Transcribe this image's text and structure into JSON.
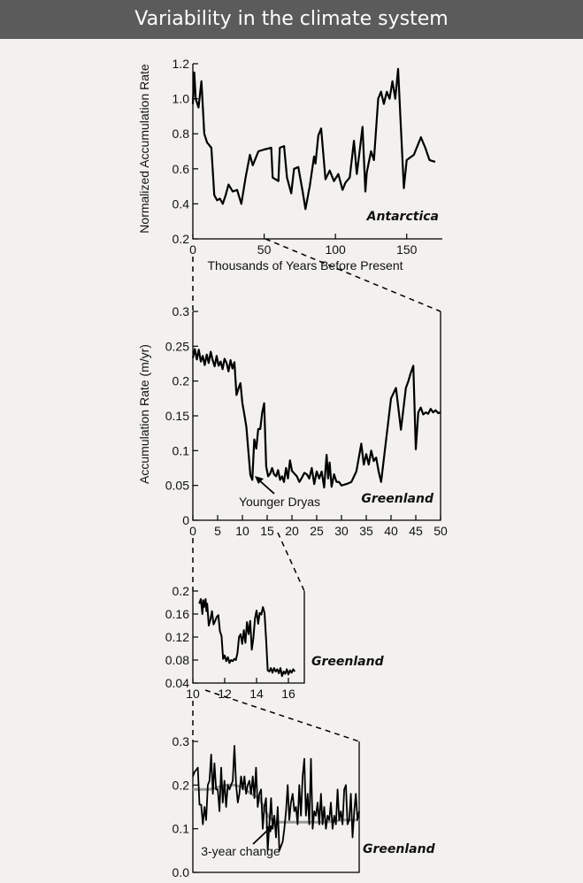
{
  "title": "Variability in the climate system",
  "chart_data": [
    {
      "type": "line",
      "region_label": "Antarctica",
      "xlabel": "Thousands of Years Before Present",
      "ylabel": "Normalized Accumulation Rate",
      "xlim": [
        0,
        175
      ],
      "ylim": [
        0.2,
        1.2
      ],
      "xticks": [
        "0",
        "50",
        "100",
        "150"
      ],
      "yticks": [
        "0.2",
        "0.4",
        "0.6",
        "0.8",
        "1.0",
        "1.2"
      ],
      "x": [
        0,
        1,
        2,
        4,
        6,
        8,
        10,
        13,
        15,
        17,
        19,
        21,
        23,
        25,
        28,
        31,
        34,
        37,
        40,
        42,
        44,
        46,
        50,
        55,
        56,
        60,
        61,
        64,
        66,
        69,
        71,
        74,
        77,
        79,
        82,
        85,
        86,
        88,
        90,
        93,
        96,
        99,
        102,
        105,
        107,
        110,
        113,
        115,
        117,
        119,
        121,
        122,
        125,
        127,
        130,
        132,
        134,
        136,
        138,
        140,
        142,
        144,
        146,
        148,
        150,
        155,
        160,
        163,
        166,
        170
      ],
      "y": [
        0.97,
        1.15,
        1.0,
        0.95,
        1.1,
        0.8,
        0.75,
        0.72,
        0.45,
        0.42,
        0.43,
        0.4,
        0.45,
        0.51,
        0.47,
        0.48,
        0.4,
        0.55,
        0.68,
        0.62,
        0.66,
        0.7,
        0.71,
        0.72,
        0.55,
        0.53,
        0.72,
        0.73,
        0.55,
        0.46,
        0.6,
        0.61,
        0.47,
        0.37,
        0.5,
        0.67,
        0.63,
        0.79,
        0.83,
        0.54,
        0.59,
        0.53,
        0.57,
        0.48,
        0.52,
        0.55,
        0.76,
        0.57,
        0.7,
        0.84,
        0.47,
        0.58,
        0.7,
        0.65,
        1.0,
        1.04,
        0.97,
        1.04,
        1.0,
        1.1,
        1.0,
        1.17,
        0.82,
        0.49,
        0.65,
        0.68,
        0.78,
        0.72,
        0.65,
        0.64
      ]
    },
    {
      "type": "line",
      "region_label": "Greenland",
      "xlabel": "",
      "ylabel": "Accumulation Rate (m/yr)",
      "xlim": [
        0,
        50
      ],
      "ylim": [
        0,
        0.3
      ],
      "xticks": [
        "0",
        "5",
        "10",
        "15",
        "20",
        "25",
        "30",
        "35",
        "40",
        "45",
        "50"
      ],
      "yticks": [
        "0",
        "0.05",
        "0.1",
        "0.15",
        "0.2",
        "0.25",
        "0.3"
      ],
      "annotation": "Younger Dryas",
      "x": [
        0,
        0.4,
        0.8,
        1.2,
        1.6,
        2.0,
        2.4,
        2.8,
        3.2,
        3.6,
        4.0,
        4.4,
        4.8,
        5.2,
        5.6,
        6.0,
        6.4,
        6.8,
        7.2,
        7.6,
        8.0,
        8.4,
        8.8,
        9.2,
        9.6,
        10.0,
        10.4,
        10.8,
        11.2,
        11.6,
        12.0,
        12.4,
        12.8,
        13.2,
        13.6,
        14.0,
        14.4,
        14.8,
        15.2,
        15.6,
        16.0,
        16.4,
        16.8,
        17.2,
        17.6,
        18.0,
        18.4,
        18.8,
        19.2,
        19.6,
        20.0,
        20.5,
        21,
        21.5,
        22,
        22.5,
        23,
        23.5,
        24,
        24.5,
        25,
        25.5,
        26,
        26.5,
        27,
        27.3,
        27.6,
        28,
        28.5,
        29,
        29.5,
        30,
        31,
        32,
        33,
        34,
        34.5,
        35,
        35.5,
        36,
        36.5,
        37,
        37.5,
        38,
        39,
        40,
        41,
        42,
        43,
        43.5,
        44,
        44.5,
        45,
        45.5,
        46,
        46.5,
        47,
        47.5,
        48,
        48.5,
        49,
        49.5,
        50
      ],
      "y": [
        0.233,
        0.246,
        0.231,
        0.245,
        0.228,
        0.236,
        0.223,
        0.238,
        0.226,
        0.242,
        0.23,
        0.221,
        0.236,
        0.222,
        0.228,
        0.217,
        0.232,
        0.226,
        0.214,
        0.23,
        0.218,
        0.227,
        0.18,
        0.189,
        0.197,
        0.168,
        0.152,
        0.134,
        0.1,
        0.065,
        0.058,
        0.116,
        0.103,
        0.131,
        0.131,
        0.155,
        0.168,
        0.077,
        0.063,
        0.067,
        0.075,
        0.066,
        0.063,
        0.072,
        0.058,
        0.063,
        0.055,
        0.075,
        0.06,
        0.086,
        0.071,
        0.067,
        0.063,
        0.055,
        0.061,
        0.068,
        0.066,
        0.06,
        0.075,
        0.052,
        0.07,
        0.06,
        0.07,
        0.047,
        0.094,
        0.06,
        0.083,
        0.048,
        0.066,
        0.055,
        0.055,
        0.05,
        0.052,
        0.055,
        0.07,
        0.11,
        0.08,
        0.095,
        0.08,
        0.1,
        0.085,
        0.09,
        0.07,
        0.055,
        0.115,
        0.175,
        0.19,
        0.13,
        0.19,
        0.2,
        0.212,
        0.222,
        0.102,
        0.155,
        0.162,
        0.152,
        0.155,
        0.153,
        0.16,
        0.155,
        0.158,
        0.154,
        0.155
      ]
    },
    {
      "type": "line",
      "region_label": "Greenland",
      "xlabel": "",
      "ylabel": "",
      "xlim": [
        10,
        17
      ],
      "ylim": [
        0.04,
        0.2
      ],
      "xticks": [
        "10",
        "12",
        "14",
        "16"
      ],
      "yticks": [
        "0.04",
        "0.08",
        "0.12",
        "0.16",
        "0.2"
      ],
      "x": [
        10.4,
        10.5,
        10.6,
        10.65,
        10.7,
        10.8,
        10.85,
        10.9,
        11.0,
        11.1,
        11.2,
        11.3,
        11.4,
        11.5,
        11.6,
        11.7,
        11.8,
        11.9,
        12.0,
        12.1,
        12.2,
        12.3,
        12.4,
        12.5,
        12.6,
        12.7,
        12.8,
        12.9,
        13.0,
        13.1,
        13.2,
        13.3,
        13.4,
        13.5,
        13.6,
        13.7,
        13.8,
        13.9,
        14.0,
        14.1,
        14.2,
        14.3,
        14.4,
        14.5,
        14.6,
        14.7,
        14.8,
        14.9,
        15.0,
        15.1,
        15.2,
        15.3,
        15.4,
        15.5,
        15.6,
        15.7,
        15.8,
        15.9,
        16.0,
        16.1,
        16.2,
        16.3,
        16.4
      ],
      "y": [
        0.178,
        0.186,
        0.16,
        0.184,
        0.172,
        0.186,
        0.165,
        0.178,
        0.14,
        0.15,
        0.165,
        0.142,
        0.148,
        0.155,
        0.158,
        0.13,
        0.122,
        0.082,
        0.088,
        0.078,
        0.085,
        0.075,
        0.08,
        0.078,
        0.082,
        0.08,
        0.092,
        0.12,
        0.125,
        0.108,
        0.132,
        0.11,
        0.146,
        0.125,
        0.148,
        0.098,
        0.118,
        0.152,
        0.166,
        0.143,
        0.162,
        0.159,
        0.172,
        0.162,
        0.116,
        0.062,
        0.06,
        0.066,
        0.058,
        0.066,
        0.06,
        0.064,
        0.057,
        0.066,
        0.052,
        0.06,
        0.056,
        0.064,
        0.055,
        0.062,
        0.058,
        0.064,
        0.06
      ]
    },
    {
      "type": "line",
      "region_label": "Greenland",
      "xlabel": "",
      "ylabel": "",
      "ylim": [
        0,
        0.3
      ],
      "xticks": [],
      "yticks": [
        "0.0",
        "0.1",
        "0.2",
        "0.3"
      ],
      "annotation": "3-year change",
      "series": [
        {
          "x": [
            0,
            1,
            2,
            3,
            4,
            5,
            6,
            7,
            8,
            9,
            10,
            11,
            12,
            13,
            14,
            15,
            16,
            17,
            18,
            19,
            20,
            21,
            22,
            23,
            24,
            25,
            26,
            27,
            28,
            29,
            30,
            31,
            32,
            33,
            34,
            35,
            36,
            37,
            38,
            39,
            40,
            41,
            42,
            43,
            44,
            45,
            46,
            47,
            48,
            49,
            50,
            51,
            52,
            53,
            54,
            55,
            56,
            57,
            58,
            59,
            60,
            61,
            62,
            63,
            64,
            65,
            66,
            67,
            68,
            69,
            70,
            71,
            72,
            73,
            74,
            75,
            76,
            77,
            78,
            79,
            80,
            81,
            82,
            83,
            84,
            85,
            86,
            87,
            88,
            89,
            90,
            91,
            92,
            93,
            94,
            95,
            96,
            97,
            98,
            99,
            100
          ],
          "y": [
            0.22,
            0.23,
            0.235,
            0.24,
            0.155,
            0.155,
            0.11,
            0.15,
            0.12,
            0.2,
            0.21,
            0.27,
            0.18,
            0.25,
            0.19,
            0.19,
            0.14,
            0.24,
            0.16,
            0.21,
            0.15,
            0.2,
            0.19,
            0.2,
            0.21,
            0.29,
            0.2,
            0.16,
            0.18,
            0.22,
            0.19,
            0.22,
            0.18,
            0.2,
            0.21,
            0.18,
            0.22,
            0.17,
            0.24,
            0.15,
            0.18,
            0.19,
            0.1,
            0.15,
            0.17,
            0.05,
            0.11,
            0.17,
            0.1,
            0.13,
            0.08,
            0.15,
            0.05,
            0.06,
            0.07,
            0.1,
            0.14,
            0.2,
            0.12,
            0.16,
            0.18,
            0.14,
            0.15,
            0.11,
            0.2,
            0.13,
            0.22,
            0.26,
            0.13,
            0.18,
            0.11,
            0.26,
            0.1,
            0.14,
            0.13,
            0.16,
            0.11,
            0.18,
            0.11,
            0.15,
            0.1,
            0.13,
            0.12,
            0.16,
            0.1,
            0.13,
            0.11,
            0.19,
            0.12,
            0.14,
            0.11,
            0.19,
            0.2,
            0.11,
            0.12,
            0.18,
            0.08,
            0.14,
            0.18,
            0.12,
            0.14
          ]
        },
        {
          "x": [
            0,
            10,
            20,
            25,
            30,
            35,
            40,
            43,
            46,
            50,
            55,
            60,
            70,
            80,
            90,
            100
          ],
          "y": [
            0.19,
            0.19,
            0.2,
            0.2,
            0.195,
            0.18,
            0.17,
            0.145,
            0.125,
            0.115,
            0.115,
            0.115,
            0.115,
            0.115,
            0.12,
            0.12
          ]
        }
      ]
    }
  ]
}
